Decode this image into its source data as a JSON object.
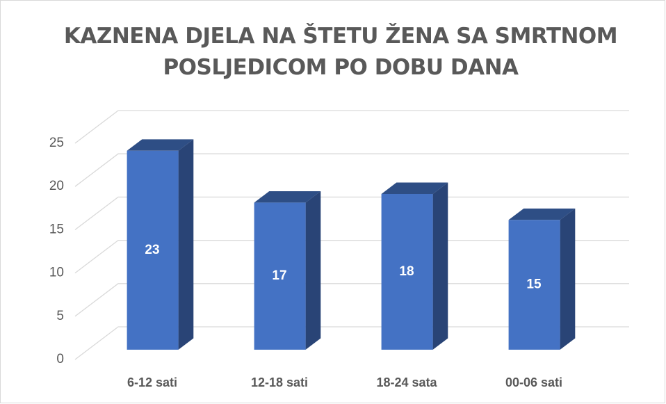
{
  "chart_data": {
    "type": "bar3d",
    "title": "KAZNENA DJELA NA ŠTETU ŽENA SA SMRTNOM POSLJEDICOM PO DOBU DANA",
    "categories": [
      "6-12 sati",
      "12-18 sati",
      "18-24 sata",
      "00-06 sati"
    ],
    "values": [
      23,
      17,
      18,
      15
    ],
    "color": "#4472c4",
    "ylim": [
      0,
      25
    ],
    "yticks": [
      0,
      5,
      10,
      15,
      20,
      25
    ],
    "grid": true
  }
}
